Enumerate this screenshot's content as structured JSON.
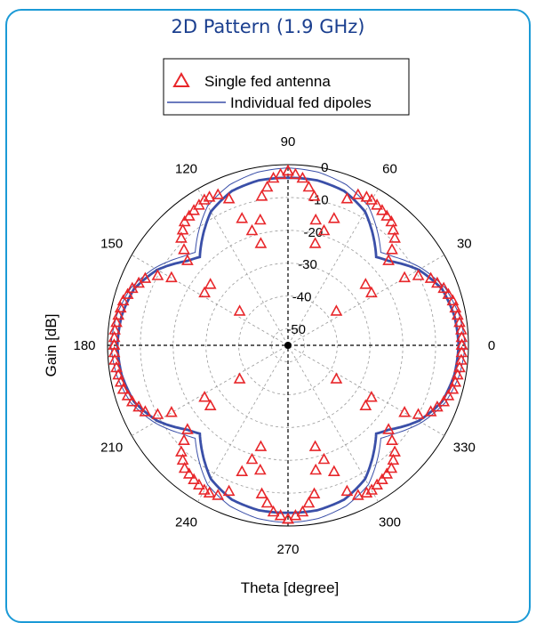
{
  "chart_data": {
    "type": "polar",
    "title": "2D Pattern (1.9 GHz)",
    "ylabel": "Gain [dB]",
    "xlabel": "Theta [degree]",
    "r_ticks": [
      0,
      -10,
      -20,
      -30,
      -40,
      -50
    ],
    "r_range": [
      -55,
      0
    ],
    "theta_ticks": [
      0,
      30,
      60,
      90,
      120,
      150,
      180,
      210,
      240,
      270,
      300,
      330
    ],
    "grid": true,
    "legend_position": "top-center",
    "series": [
      {
        "name": "Single fed antenna",
        "marker": "triangle",
        "color": "#e8262a",
        "theta": [
          0,
          5,
          10,
          15,
          20,
          25,
          28,
          30,
          32,
          35,
          38,
          40,
          45,
          50,
          55,
          60,
          62,
          65,
          68,
          70,
          75,
          80,
          85,
          90
        ],
        "r": [
          -2,
          -2,
          -2.5,
          -3,
          -4.5,
          -7,
          -10,
          -14,
          -25,
          -37,
          -25,
          -15,
          -9,
          -6,
          -5,
          -4,
          -4,
          -4.5,
          -7,
          -14,
          -23,
          -9,
          -4,
          -2
        ]
      },
      {
        "name": "Individual fed dipoles",
        "marker": "line",
        "color": "#3a4fa8",
        "theta": [
          0,
          10,
          20,
          30,
          40,
          45,
          50,
          60,
          70,
          80,
          90
        ],
        "r": [
          -3,
          -3.5,
          -5,
          -9,
          -15,
          -17,
          -14,
          -8,
          -5,
          -4,
          -4
        ]
      }
    ],
    "secondary_trace": {
      "theta": [
        0,
        10,
        20,
        30,
        40,
        45,
        50,
        60,
        70,
        80,
        90
      ],
      "r": [
        -1,
        -2,
        -4,
        -8,
        -13,
        -15,
        -12,
        -6,
        -3,
        -1.5,
        -1
      ]
    }
  }
}
